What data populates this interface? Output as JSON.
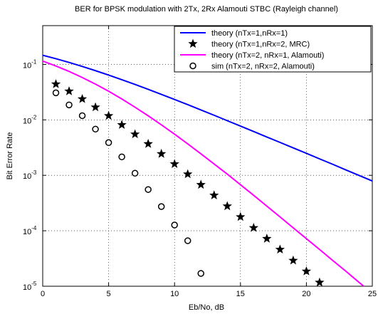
{
  "chart_data": {
    "type": "line",
    "title": "BER for BPSK modulation with 2Tx, 2Rx Alamouti STBC (Rayleigh channel)",
    "xlabel": "Eb/No, dB",
    "ylabel": "Bit Error Rate",
    "yscale": "log",
    "grid": true,
    "legend": "upper right",
    "xlim": [
      0,
      25
    ],
    "xticks": [
      0,
      5,
      10,
      15,
      20,
      25
    ],
    "ylim": [
      1e-05,
      0.5
    ],
    "yticks": [
      {
        "value": 0.1,
        "label": "10",
        "exponent": "-1"
      },
      {
        "value": 0.01,
        "label": "10",
        "exponent": "-2"
      },
      {
        "value": 0.001,
        "label": "10",
        "exponent": "-3"
      },
      {
        "value": 0.0001,
        "label": "10",
        "exponent": "-4"
      },
      {
        "value": 1e-05,
        "label": "10",
        "exponent": "-5"
      }
    ],
    "series": [
      {
        "name": "theory (nTx=1,nRx=1)",
        "color": "#0000ff",
        "linestyle": "-",
        "marker": "none",
        "x": [
          0,
          1,
          2,
          3,
          4,
          5,
          6,
          7,
          8,
          9,
          10,
          11,
          12,
          13,
          14,
          15,
          16,
          17,
          18,
          19,
          20,
          21,
          22,
          23,
          24,
          25
        ],
        "values": [
          0.1464,
          0.1267,
          0.1085,
          0.0919,
          0.0771,
          0.0642,
          0.053,
          0.0435,
          0.0355,
          0.0288,
          0.0233,
          0.0188,
          0.0151,
          0.0121,
          0.00966,
          0.00772,
          0.00616,
          0.00491,
          0.00392,
          0.00312,
          0.00249,
          0.00198,
          0.00158,
          0.00125,
          0.000995,
          0.00079
        ]
      },
      {
        "name": "theory (nTx=1,nRx=2, MRC)",
        "color": "#000000",
        "linestyle": "none",
        "marker": "star",
        "x": [
          1,
          2,
          3,
          4,
          5,
          6,
          7,
          8,
          9,
          10,
          11,
          12,
          13,
          14,
          15,
          16,
          17,
          18,
          19,
          20,
          21
        ],
        "values": [
          0.0441,
          0.0328,
          0.0238,
          0.0169,
          0.01184,
          0.00813,
          0.00551,
          0.00369,
          0.00244,
          0.0016,
          0.00105,
          0.000677,
          0.000436,
          0.000278,
          0.000178,
          0.000113,
          7.21e-05,
          4.6e-05,
          2.91e-05,
          1.86e-05,
          1.17e-05
        ]
      },
      {
        "name": "theory (nTx=2, nRx=1, Alamouti)",
        "color": "#ff00ff",
        "linestyle": "-",
        "marker": "none",
        "x": [
          0,
          1,
          2,
          3,
          4,
          5,
          6,
          7,
          8,
          9,
          10,
          11,
          12,
          13,
          14,
          15,
          16,
          17,
          18,
          19,
          20,
          21,
          22,
          23,
          24,
          25
        ],
        "values": [
          0.1148,
          0.0937,
          0.0746,
          0.058,
          0.0441,
          0.0328,
          0.0238,
          0.0169,
          0.01184,
          0.00813,
          0.00551,
          0.00369,
          0.00244,
          0.0016,
          0.00105,
          0.000677,
          0.000436,
          0.000278,
          0.000178,
          0.000113,
          7.21e-05,
          4.6e-05,
          2.91e-05,
          1.86e-05,
          1.17e-05,
          7.48e-06
        ]
      },
      {
        "name": "sim (nTx=2, nRx=2, Alamouti)",
        "color": "#000000",
        "linestyle": "none",
        "marker": "circle",
        "x": [
          1,
          2,
          3,
          4,
          5,
          6,
          7,
          8,
          9,
          10,
          11,
          12
        ],
        "values": [
          0.0307,
          0.0186,
          0.0119,
          0.00681,
          0.00389,
          0.00215,
          0.00109,
          0.000554,
          0.000273,
          0.000127,
          6.62e-05,
          1.7e-05
        ]
      }
    ]
  }
}
